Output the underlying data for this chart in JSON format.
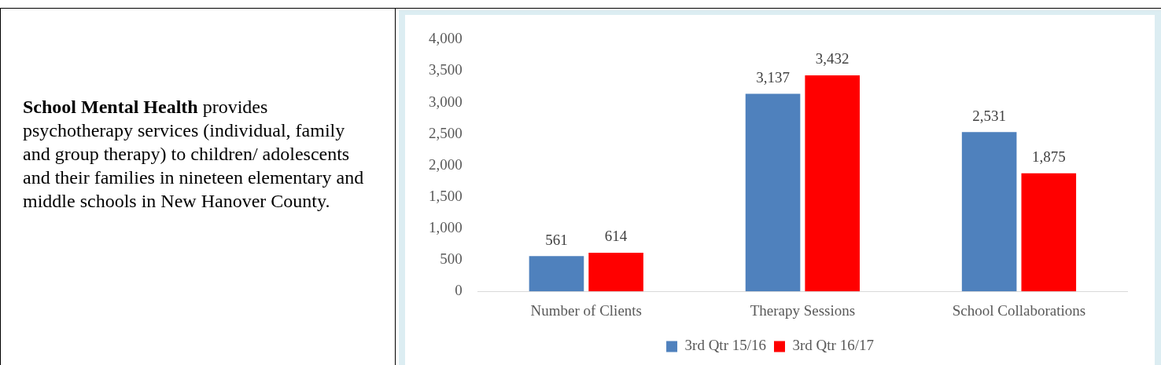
{
  "chart_data": {
    "type": "bar",
    "categories": [
      "Number of Clients",
      "Therapy Sessions",
      "School Collaborations"
    ],
    "series": [
      {
        "name": "3rd Qtr 15/16",
        "color": "#4f81bd",
        "values": [
          561,
          3137,
          2531
        ],
        "value_labels": [
          "561",
          "3,137",
          "2,531"
        ]
      },
      {
        "name": "3rd Qtr 16/17",
        "color": "#ff0000",
        "values": [
          614,
          3432,
          1875
        ],
        "value_labels": [
          "614",
          "3,432",
          "1,875"
        ]
      }
    ],
    "ylim": [
      0,
      4000
    ],
    "yticks": [
      {
        "value": 0,
        "label": "0"
      },
      {
        "value": 500,
        "label": "500"
      },
      {
        "value": 1000,
        "label": "1,000"
      },
      {
        "value": 1500,
        "label": "1,500"
      },
      {
        "value": 2000,
        "label": "2,000"
      },
      {
        "value": 2500,
        "label": "2,500"
      },
      {
        "value": 3000,
        "label": "3,000"
      },
      {
        "value": 3500,
        "label": "3,500"
      },
      {
        "value": 4000,
        "label": "4,000"
      }
    ],
    "grid": false,
    "legend": "bottom",
    "annotations": [
      "School Mental Health",
      "provides psychotherapy services (individual, family and group therapy) to children/ adolescents and their families in nineteen elementary and middle schools in New Hanover County."
    ]
  }
}
